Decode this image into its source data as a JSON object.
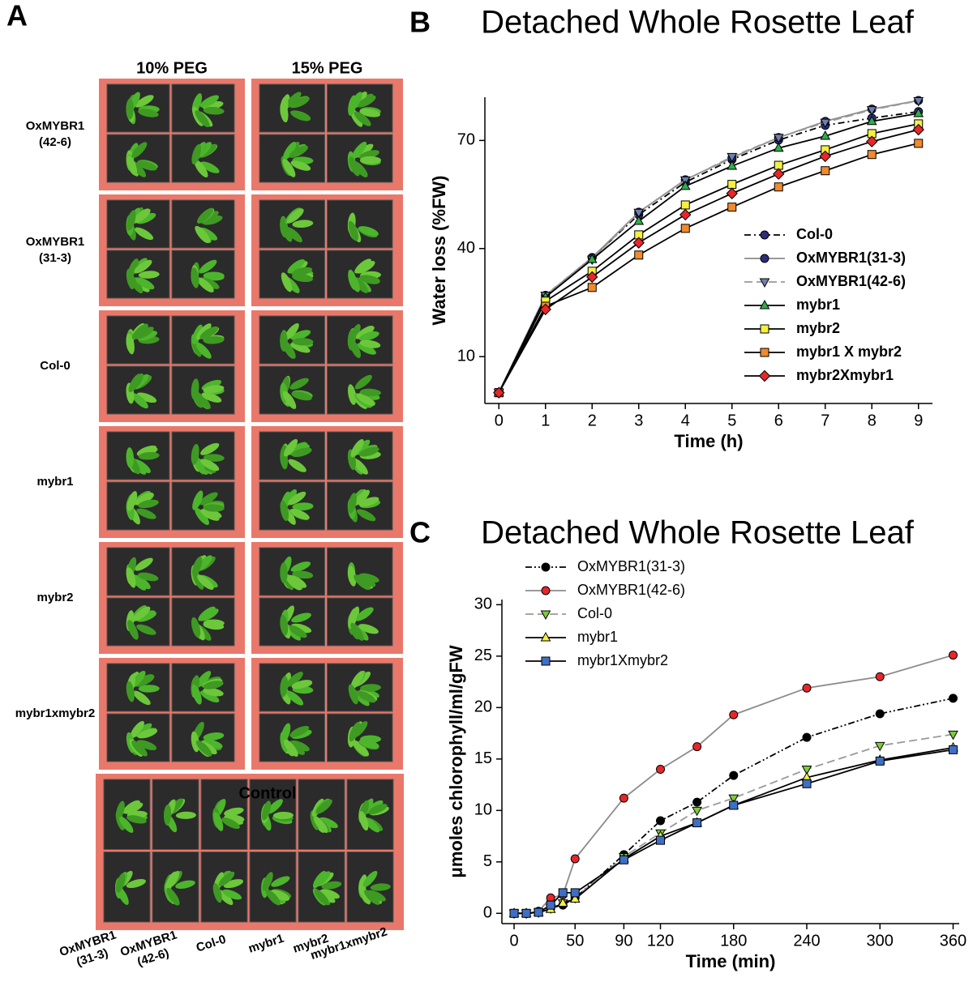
{
  "panel_a": {
    "label": "A",
    "columns": [
      "10% PEG",
      "15% PEG"
    ],
    "rows": [
      [
        "OxMYBR1",
        "(42-6)"
      ],
      [
        "OxMYBR1",
        "(31-3)"
      ],
      [
        "Col-0"
      ],
      [
        "mybr1"
      ],
      [
        "mybr2"
      ],
      [
        "mybr1xmybr2"
      ]
    ],
    "control_title": "Control",
    "control_labels": [
      [
        "OxMYBR1",
        "(31-3)"
      ],
      [
        "OxMYBR1",
        "(42-6)"
      ],
      [
        "Col-0"
      ],
      [
        "mybr1"
      ],
      [
        "mybr2"
      ],
      [
        "mybr1xmybr2"
      ]
    ]
  },
  "chart_data": [
    {
      "type": "line",
      "panel_label": "B",
      "title": "Detached Whole Rosette Leaf",
      "x_label": "Time (h)",
      "y_label": "Water loss (%FW)",
      "x": [
        0,
        1,
        2,
        3,
        4,
        5,
        6,
        7,
        8,
        9
      ],
      "xlim": [
        -0.3,
        9.3
      ],
      "xticks": [
        0,
        1,
        2,
        3,
        4,
        5,
        6,
        7,
        8,
        9
      ],
      "ylim": [
        -3,
        82
      ],
      "yticks": [
        10,
        40,
        70
      ],
      "legend": "lower right",
      "series": [
        {
          "name": "Col-0",
          "color": "#2a2f7a",
          "line_color": "#000000",
          "dash": "dashdot",
          "marker": "circle",
          "values": [
            0,
            27,
            37.5,
            49.4,
            58.4,
            64.7,
            70.1,
            74.2,
            76.2,
            78
          ]
        },
        {
          "name": "OxMYBR1(31-3)",
          "color": "#2a2f7a",
          "line_color": "#8c8c8c",
          "dash": "solid",
          "marker": "circle",
          "values": [
            0,
            27,
            37.5,
            50.1,
            59.1,
            65.2,
            70.8,
            75.3,
            78.7,
            81.1
          ]
        },
        {
          "name": "OxMYBR1(42-6)",
          "color": "#6f7fb0",
          "line_color": "#9a9a9a",
          "dash": "dashed",
          "marker": "triangle-down",
          "values": [
            0,
            27,
            37,
            50,
            59,
            65.5,
            70.8,
            75,
            78.5,
            81
          ]
        },
        {
          "name": "mybr1",
          "color": "#2fae4a",
          "line_color": "#000000",
          "dash": "solid",
          "marker": "triangle",
          "values": [
            0,
            26.5,
            37,
            47.6,
            57.3,
            62.9,
            67.9,
            71.2,
            75.3,
            77.5
          ]
        },
        {
          "name": "mybr2",
          "color": "#f4f040",
          "line_color": "#000000",
          "dash": "solid",
          "marker": "square",
          "values": [
            0,
            25.4,
            33.7,
            43.8,
            52.1,
            57.8,
            63.1,
            67.4,
            71.9,
            74.6
          ]
        },
        {
          "name": "mybr1 X mybr2",
          "color": "#f08a2c",
          "line_color": "#000000",
          "dash": "solid",
          "marker": "square",
          "values": [
            0,
            24,
            29.2,
            38.2,
            45.6,
            51.5,
            57.1,
            61.6,
            66.1,
            69.2
          ]
        },
        {
          "name": "mybr2Xmybr1",
          "color": "#e8262a",
          "line_color": "#000000",
          "dash": "solid",
          "marker": "diamond",
          "values": [
            0,
            23.1,
            32.1,
            41.6,
            49.4,
            55.3,
            60.7,
            65.6,
            69.7,
            73
          ]
        }
      ]
    },
    {
      "type": "line",
      "panel_label": "C",
      "title": "Detached Whole Rosette Leaf",
      "x_label": "Time (min)",
      "y_label": "μmoles chlorophyll/ml/gFW",
      "x": [
        0,
        10,
        20,
        30,
        40,
        50,
        90,
        120,
        150,
        180,
        240,
        300,
        360
      ],
      "xlim": [
        -10,
        365
      ],
      "xticks": [
        0,
        50,
        90,
        120,
        180,
        240,
        300,
        360
      ],
      "ylim": [
        -1,
        30.5
      ],
      "yticks": [
        0,
        5,
        10,
        15,
        20,
        25,
        30
      ],
      "legend": "upper left",
      "series": [
        {
          "name": "OxMYBR1(31-3)",
          "color": "#000000",
          "line_color": "#000000",
          "dash": "dashdotdot",
          "marker": "circle",
          "values": [
            0,
            0,
            0.1,
            0.5,
            0.8,
            1.5,
            5.7,
            9,
            10.8,
            13.4,
            17.1,
            19.4,
            20.9
          ]
        },
        {
          "name": "OxMYBR1(42-6)",
          "color": "#e8262a",
          "line_color": "#8c8c8c",
          "dash": "solid",
          "marker": "circle",
          "values": [
            0,
            0,
            0.2,
            1.5,
            1.8,
            5.3,
            11.2,
            14,
            16.2,
            19.3,
            21.9,
            23,
            25.1
          ]
        },
        {
          "name": "Col-0",
          "color": "#7ccc3c",
          "line_color": "#9a9a9a",
          "dash": "dashed",
          "marker": "triangle-down",
          "values": [
            0,
            0,
            0.1,
            0.5,
            1,
            1.5,
            5.5,
            7.8,
            10,
            11.2,
            14,
            16.3,
            17.4
          ]
        },
        {
          "name": "mybr1",
          "color": "#f4f040",
          "line_color": "#000000",
          "dash": "solid",
          "marker": "triangle",
          "values": [
            0,
            0,
            0.1,
            0.4,
            1,
            1.4,
            5.3,
            7.5,
            8.8,
            10.5,
            13.2,
            14.9,
            16.1
          ]
        },
        {
          "name": "mybr1Xmybr2",
          "color": "#3f6fc4",
          "line_color": "#000000",
          "dash": "solid",
          "marker": "square",
          "values": [
            0,
            0,
            0.1,
            0.8,
            2,
            2,
            5.2,
            7.1,
            8.8,
            10.5,
            12.6,
            14.8,
            15.9
          ]
        }
      ]
    }
  ]
}
